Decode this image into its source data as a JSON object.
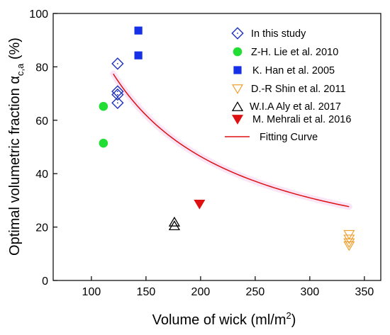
{
  "chart_data": {
    "type": "scatter",
    "xlabel": "Volume of wick (ml/m",
    "xlabel_sup": "2",
    "xlabel_end": ")",
    "ylabel": "Optimal volumetric fraction α",
    "ylabel_sub": "c,a",
    "ylabel_end": " (%)",
    "xlim": [
      65,
      365
    ],
    "ylim": [
      0,
      100
    ],
    "xticks": [
      100,
      150,
      200,
      250,
      300,
      350
    ],
    "yticks": [
      0,
      20,
      40,
      60,
      80,
      100
    ],
    "grid": false,
    "legend_position": "top-right",
    "series": [
      {
        "name": "In this study",
        "marker": "diamond-dot",
        "color": "#1f2fbf",
        "points": [
          [
            124,
            81.2
          ],
          [
            124,
            70.8
          ],
          [
            124,
            69.6
          ],
          [
            124,
            66.5
          ]
        ]
      },
      {
        "name": "Z-H. Lie et al. 2010",
        "marker": "circle",
        "color": "#22dd33",
        "points": [
          [
            111,
            65.2
          ],
          [
            111,
            51.4
          ]
        ]
      },
      {
        "name": "K. Han et al. 2005",
        "marker": "square",
        "color": "#1530e6",
        "points": [
          [
            143,
            93.6
          ],
          [
            143,
            84.3
          ]
        ]
      },
      {
        "name": "D.-R Shin et al. 2011",
        "marker": "triangle-down-open",
        "color": "#f0a030",
        "points": [
          [
            336,
            17.3
          ],
          [
            336,
            15.6
          ],
          [
            336,
            14.2
          ],
          [
            336,
            13.1
          ]
        ]
      },
      {
        "name": "W.I.A Aly et al. 2017",
        "marker": "triangle-up-open",
        "color": "#000000",
        "points": [
          [
            176,
            21.8
          ],
          [
            176,
            20.4
          ]
        ]
      },
      {
        "name": "M. Mehrali et al. 2016",
        "marker": "triangle-down",
        "color": "#dd1111",
        "points": [
          [
            199,
            28.7
          ]
        ]
      }
    ],
    "fit": {
      "name": "Fitting Curve",
      "color": "#dd1111",
      "x_start": 120,
      "x_end": 336,
      "a": 9287,
      "b": -0.0001
    }
  }
}
